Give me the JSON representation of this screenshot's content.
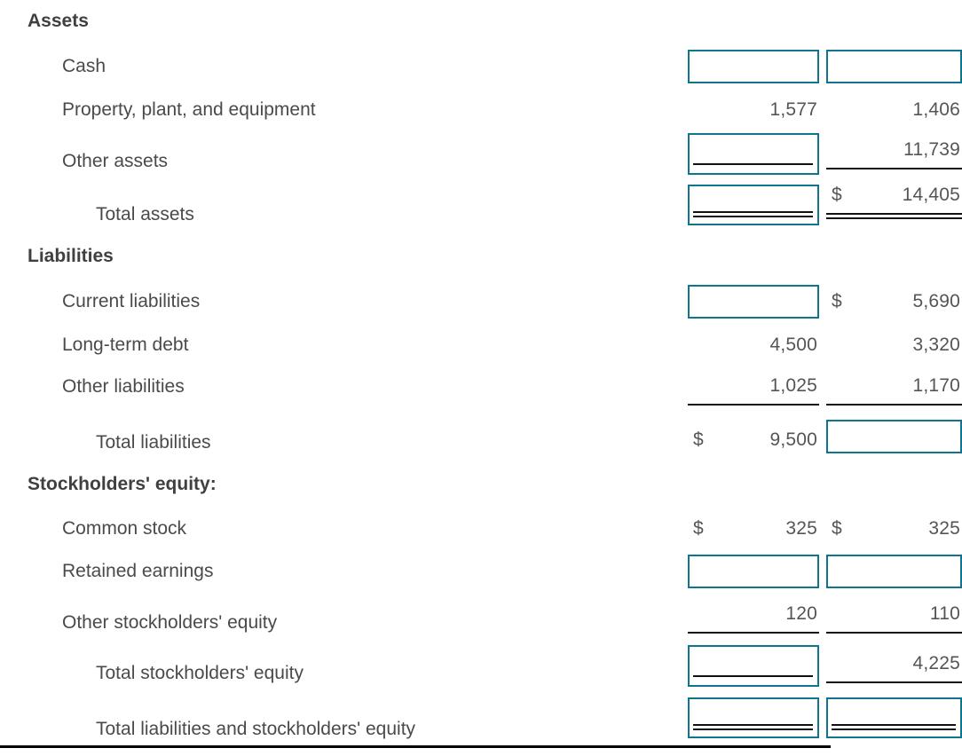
{
  "accent_color": "#0e7490",
  "rule_color": "#111111",
  "sheet": {
    "currency_symbol": "$",
    "rows": [
      {
        "id": "assets",
        "type": "heading",
        "label": "Assets"
      },
      {
        "id": "cash",
        "type": "item",
        "label": "Cash",
        "col1": {
          "kind": "input",
          "value": "",
          "underline": "none"
        },
        "col2": {
          "kind": "input",
          "value": "",
          "underline": "none"
        }
      },
      {
        "id": "ppe",
        "type": "item",
        "label": "Property, plant, and equipment",
        "col1": {
          "kind": "value",
          "text": "1,577",
          "dollar": false,
          "underline": "none"
        },
        "col2": {
          "kind": "value",
          "text": "1,406",
          "dollar": false,
          "underline": "none"
        }
      },
      {
        "id": "other-assets",
        "type": "item",
        "label": "Other assets",
        "col1": {
          "kind": "input",
          "value": "",
          "underline": "single"
        },
        "col2": {
          "kind": "value",
          "text": "11,739",
          "dollar": false,
          "underline": "single"
        }
      },
      {
        "id": "total-assets",
        "type": "total",
        "label": "Total assets",
        "col1": {
          "kind": "input",
          "value": "",
          "underline": "double"
        },
        "col2": {
          "kind": "value",
          "text": "14,405",
          "dollar": true,
          "underline": "double"
        }
      },
      {
        "id": "liabilities",
        "type": "heading",
        "label": "Liabilities"
      },
      {
        "id": "current-liabilities",
        "type": "item",
        "label": "Current liabilities",
        "col1": {
          "kind": "input",
          "value": "",
          "underline": "none"
        },
        "col2": {
          "kind": "value",
          "text": "5,690",
          "dollar": true,
          "underline": "none"
        }
      },
      {
        "id": "long-term-debt",
        "type": "item",
        "label": "Long-term debt",
        "col1": {
          "kind": "value",
          "text": "4,500",
          "dollar": false,
          "underline": "none"
        },
        "col2": {
          "kind": "value",
          "text": "3,320",
          "dollar": false,
          "underline": "none"
        }
      },
      {
        "id": "other-liabilities",
        "type": "item",
        "label": "Other liabilities",
        "col1": {
          "kind": "value",
          "text": "1,025",
          "dollar": false,
          "underline": "single"
        },
        "col2": {
          "kind": "value",
          "text": "1,170",
          "dollar": false,
          "underline": "single"
        }
      },
      {
        "id": "total-liabilities",
        "type": "total",
        "label": "Total liabilities",
        "col1": {
          "kind": "value",
          "text": "9,500",
          "dollar": true,
          "underline": "none"
        },
        "col2": {
          "kind": "input",
          "value": "",
          "underline": "none"
        }
      },
      {
        "id": "stockholders-equity",
        "type": "heading",
        "label": "Stockholders' equity:"
      },
      {
        "id": "common-stock",
        "type": "item",
        "label": "Common stock",
        "col1": {
          "kind": "value",
          "text": "325",
          "dollar": true,
          "underline": "none"
        },
        "col2": {
          "kind": "value",
          "text": "325",
          "dollar": true,
          "underline": "none"
        }
      },
      {
        "id": "retained-earnings",
        "type": "item",
        "label": "Retained earnings",
        "col1": {
          "kind": "input",
          "value": "",
          "underline": "none"
        },
        "col2": {
          "kind": "input",
          "value": "",
          "underline": "none"
        }
      },
      {
        "id": "other-se",
        "type": "item",
        "label": "Other stockholders' equity",
        "col1": {
          "kind": "value",
          "text": "120",
          "dollar": false,
          "underline": "single"
        },
        "col2": {
          "kind": "value",
          "text": "110",
          "dollar": false,
          "underline": "single"
        }
      },
      {
        "id": "total-se",
        "type": "total",
        "label": "Total stockholders' equity",
        "col1": {
          "kind": "input",
          "value": "",
          "underline": "single"
        },
        "col2": {
          "kind": "value",
          "text": "4,225",
          "dollar": false,
          "underline": "single"
        }
      },
      {
        "id": "total-lse",
        "type": "total",
        "label": "Total liabilities and stockholders' equity",
        "col1": {
          "kind": "input",
          "value": "",
          "underline": "double"
        },
        "col2": {
          "kind": "input",
          "value": "",
          "underline": "double"
        }
      }
    ]
  }
}
